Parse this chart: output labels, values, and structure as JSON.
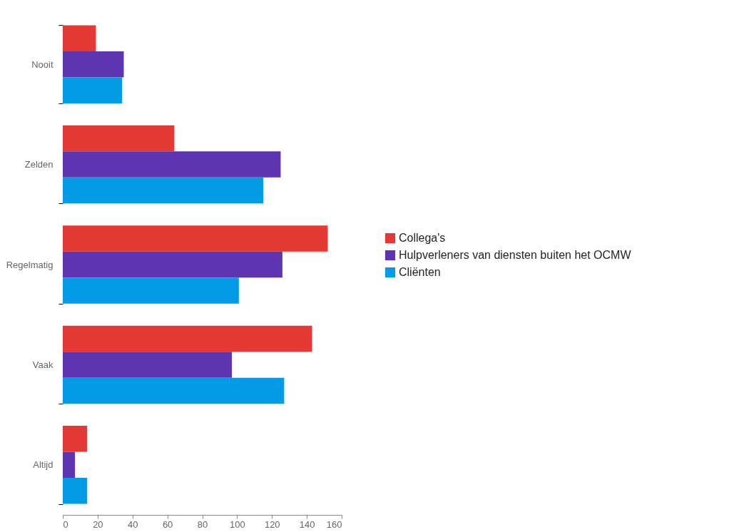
{
  "chart_data": {
    "type": "bar",
    "orientation": "horizontal",
    "categories": [
      "Nooit",
      "Zelden",
      "Regelmatig",
      "Vaak",
      "Altijd"
    ],
    "series": [
      {
        "name": "Collega's",
        "color": "#e53935",
        "values": [
          19,
          64,
          152,
          143,
          14
        ]
      },
      {
        "name": "Hulpverleners van diensten buiten het OCMW",
        "color": "#5e35b1",
        "values": [
          35,
          125,
          126,
          97,
          7
        ]
      },
      {
        "name": "Cliënten",
        "color": "#039be5",
        "values": [
          34,
          115,
          101,
          127,
          14
        ]
      }
    ],
    "xlim": [
      0,
      160
    ],
    "xticks": [
      0,
      20,
      40,
      60,
      80,
      100,
      120,
      140,
      160
    ],
    "grid": false,
    "legend": "right"
  }
}
